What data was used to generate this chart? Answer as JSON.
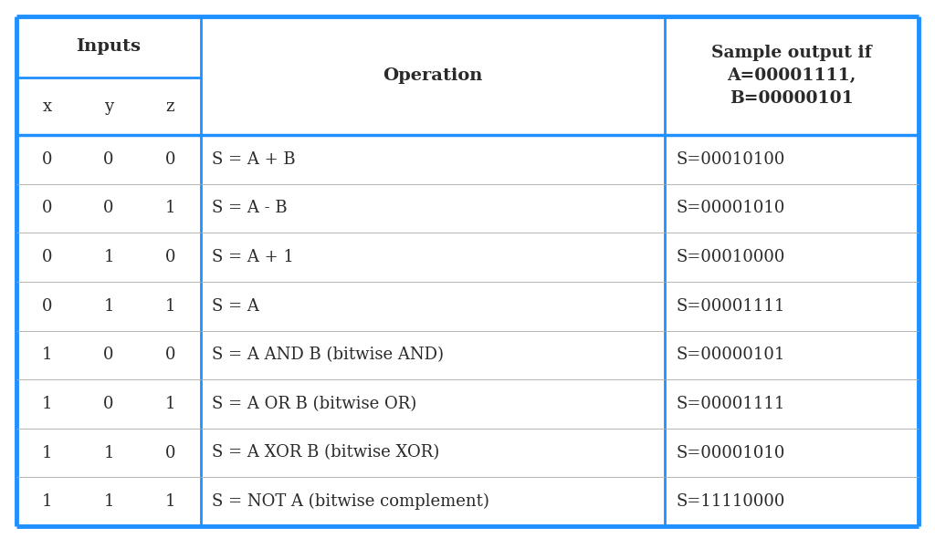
{
  "background_color": "#ffffff",
  "border_color": "#1E90FF",
  "border_color_outer": "#1a7abf",
  "text_color": "#2a2a2a",
  "col_header_inputs": "Inputs",
  "col_header_xyz": [
    "x",
    "y",
    "z"
  ],
  "col_header_operation": "Operation",
  "col_header_sample": "Sample output if\nA=00001111,\nB=00000101",
  "rows": [
    [
      "0",
      "0",
      "0",
      "S = A + B",
      "S=00010100"
    ],
    [
      "0",
      "0",
      "1",
      "S = A - B",
      "S=00001010"
    ],
    [
      "0",
      "1",
      "0",
      "S = A + 1",
      "S=00010000"
    ],
    [
      "0",
      "1",
      "1",
      "S = A",
      "S=00001111"
    ],
    [
      "1",
      "0",
      "0",
      "S = A AND B (bitwise AND)",
      "S=00000101"
    ],
    [
      "1",
      "0",
      "1",
      "S = A OR B (bitwise OR)",
      "S=00001111"
    ],
    [
      "1",
      "1",
      "0",
      "S = A XOR B (bitwise XOR)",
      "S=00001010"
    ],
    [
      "1",
      "1",
      "1",
      "S = NOT A (bitwise complement)",
      "S=11110000"
    ]
  ],
  "outer_lw": 3.5,
  "inner_lw": 2.0,
  "row_lw": 0.6,
  "font_size": 13,
  "header_font_size": 14,
  "row_font_size": 13
}
